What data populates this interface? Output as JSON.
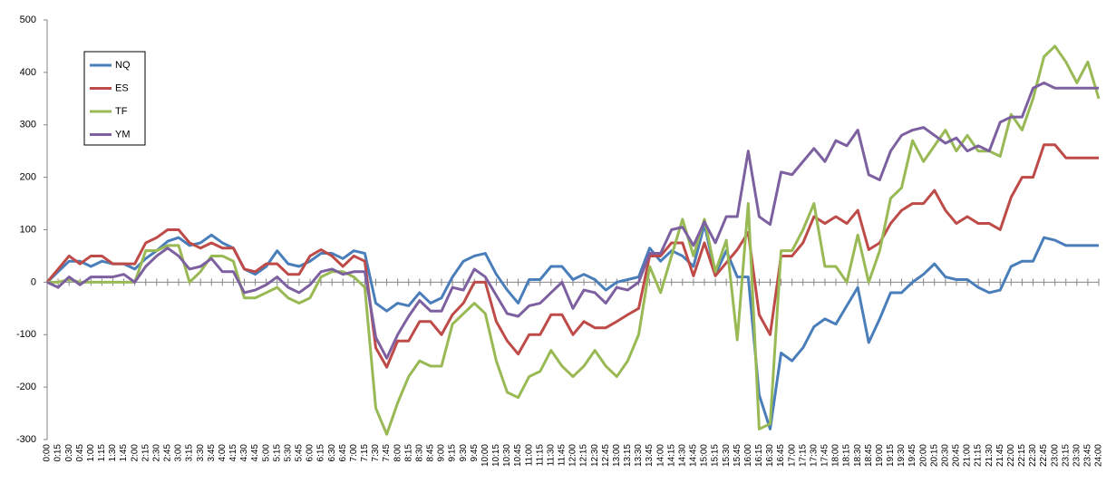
{
  "chart_data": {
    "type": "line",
    "categories": [
      "0:00",
      "0:15",
      "0:30",
      "0:45",
      "1:00",
      "1:15",
      "1:30",
      "1:45",
      "2:00",
      "2:15",
      "2:30",
      "2:45",
      "3:00",
      "3:15",
      "3:30",
      "3:45",
      "4:00",
      "4:15",
      "4:30",
      "4:45",
      "5:00",
      "5:15",
      "5:30",
      "5:45",
      "6:00",
      "6:15",
      "6:30",
      "6:45",
      "7:00",
      "7:15",
      "7:30",
      "7:45",
      "8:00",
      "8:15",
      "8:30",
      "8:45",
      "9:00",
      "9:15",
      "9:30",
      "9:45",
      "10:00",
      "10:15",
      "10:30",
      "10:45",
      "11:00",
      "11:15",
      "11:30",
      "11:45",
      "12:00",
      "12:15",
      "12:30",
      "12:45",
      "13:00",
      "13:15",
      "13:30",
      "13:45",
      "14:00",
      "14:15",
      "14:30",
      "14:45",
      "15:00",
      "15:15",
      "15:30",
      "15:45",
      "16:00",
      "16:15",
      "16:30",
      "16:45",
      "17:00",
      "17:15",
      "17:30",
      "17:45",
      "18:00",
      "18:15",
      "18:30",
      "18:45",
      "19:00",
      "19:15",
      "19:30",
      "19:45",
      "20:00",
      "20:15",
      "20:30",
      "20:45",
      "21:00",
      "21:15",
      "21:30",
      "21:45",
      "22:00",
      "22:15",
      "22:30",
      "22:45",
      "23:00",
      "23:15",
      "23:30",
      "23:45",
      "24:00"
    ],
    "series": [
      {
        "name": "NQ",
        "color": "#4a7ebb",
        "values": [
          0,
          20,
          40,
          40,
          30,
          40,
          35,
          35,
          25,
          45,
          60,
          78,
          85,
          70,
          75,
          90,
          75,
          65,
          25,
          15,
          30,
          60,
          35,
          30,
          40,
          55,
          55,
          45,
          60,
          55,
          -40,
          -55,
          -40,
          -45,
          -20,
          -40,
          -30,
          10,
          40,
          50,
          55,
          15,
          -15,
          -40,
          5,
          5,
          30,
          30,
          5,
          15,
          5,
          -15,
          0,
          5,
          10,
          65,
          40,
          60,
          50,
          30,
          110,
          15,
          60,
          10,
          10,
          -215,
          -280,
          -135,
          -150,
          -125,
          -85,
          -70,
          -80,
          -45,
          -10,
          -115,
          -70,
          -20,
          -20,
          0,
          15,
          35,
          10,
          5,
          5,
          -10,
          -20,
          -15,
          30,
          40,
          40,
          85,
          80,
          70,
          70,
          70,
          70
        ]
      },
      {
        "name": "ES",
        "color": "#be4b48",
        "values": [
          0,
          25,
          50,
          35,
          50,
          50,
          35,
          35,
          35,
          75,
          85,
          100,
          100,
          75,
          65,
          75,
          65,
          65,
          25,
          20,
          35,
          35,
          15,
          15,
          50,
          62,
          50,
          30,
          50,
          40,
          -125,
          -162,
          -112,
          -112,
          -75,
          -75,
          -100,
          -62,
          -40,
          0,
          0,
          -75,
          -112,
          -137,
          -100,
          -100,
          -62,
          -62,
          -100,
          -75,
          -87,
          -87,
          -75,
          -62,
          -50,
          50,
          50,
          75,
          75,
          12,
          75,
          12,
          37,
          62,
          95,
          -62,
          -100,
          50,
          50,
          75,
          125,
          112,
          125,
          112,
          137,
          62,
          75,
          112,
          137,
          150,
          150,
          175,
          137,
          112,
          125,
          112,
          112,
          100,
          162,
          200,
          200,
          262,
          262,
          237,
          237,
          237,
          237
        ]
      },
      {
        "name": "TF",
        "color": "#98b954",
        "values": [
          0,
          0,
          5,
          0,
          0,
          0,
          0,
          0,
          0,
          60,
          60,
          70,
          70,
          0,
          20,
          50,
          50,
          40,
          -30,
          -30,
          -20,
          -10,
          -30,
          -40,
          -30,
          10,
          20,
          20,
          10,
          -10,
          -240,
          -290,
          -230,
          -180,
          -150,
          -160,
          -160,
          -80,
          -60,
          -40,
          -60,
          -150,
          -210,
          -220,
          -180,
          -170,
          -130,
          -160,
          -180,
          -160,
          -130,
          -160,
          -180,
          -150,
          -100,
          30,
          -20,
          50,
          120,
          50,
          120,
          20,
          80,
          -110,
          150,
          -280,
          -270,
          60,
          60,
          100,
          150,
          30,
          30,
          0,
          90,
          0,
          60,
          160,
          180,
          270,
          230,
          260,
          290,
          250,
          280,
          250,
          250,
          240,
          320,
          290,
          350,
          430,
          450,
          420,
          380,
          420,
          350
        ]
      },
      {
        "name": "YM",
        "color": "#7d60a0",
        "values": [
          0,
          -10,
          10,
          -5,
          10,
          10,
          10,
          15,
          0,
          30,
          50,
          65,
          50,
          25,
          30,
          45,
          20,
          20,
          -20,
          -15,
          -5,
          10,
          -10,
          -20,
          -5,
          20,
          25,
          15,
          20,
          20,
          -105,
          -145,
          -100,
          -65,
          -35,
          -55,
          -55,
          -10,
          -15,
          25,
          10,
          -25,
          -60,
          -65,
          -45,
          -40,
          -20,
          0,
          -50,
          -15,
          -20,
          -40,
          -10,
          -15,
          0,
          55,
          55,
          100,
          105,
          70,
          115,
          75,
          125,
          125,
          250,
          125,
          110,
          210,
          205,
          230,
          255,
          230,
          270,
          260,
          290,
          205,
          195,
          250,
          280,
          290,
          295,
          280,
          265,
          275,
          250,
          260,
          250,
          305,
          315,
          315,
          370,
          380,
          370,
          370,
          370,
          370,
          370
        ]
      }
    ],
    "ylim": [
      -300,
      500
    ],
    "yticks": [
      -300,
      -200,
      -100,
      0,
      100,
      200,
      300,
      400,
      500
    ],
    "grid": false,
    "legend": "upper-left"
  }
}
